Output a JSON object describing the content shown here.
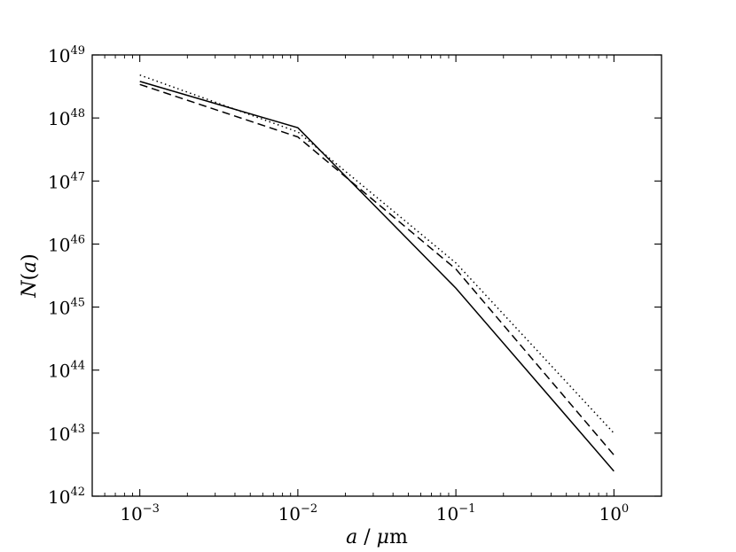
{
  "chart_data": {
    "type": "line",
    "title": "",
    "xlabel": {
      "var": "a",
      "sep": " / ",
      "mu": "μ",
      "unit": "m"
    },
    "ylabel": {
      "var": "N",
      "open": "(",
      "arg": "a",
      "close": ")"
    },
    "xscale": "log",
    "yscale": "log",
    "xlim": [
      0.0005,
      2
    ],
    "ylim": [
      1e+42,
      1e+49
    ],
    "grid": false,
    "x": [
      0.001,
      0.01,
      0.1,
      1
    ],
    "x_ticks": [
      {
        "value": 0.001,
        "base": "10",
        "exp": "−3"
      },
      {
        "value": 0.01,
        "base": "10",
        "exp": "−2"
      },
      {
        "value": 0.1,
        "base": "10",
        "exp": "−1"
      },
      {
        "value": 1,
        "base": "10",
        "exp": "0"
      }
    ],
    "y_ticks": [
      {
        "value": 1e+42,
        "base": "10",
        "exp": "42"
      },
      {
        "value": 1e+43,
        "base": "10",
        "exp": "43"
      },
      {
        "value": 1e+44,
        "base": "10",
        "exp": "44"
      },
      {
        "value": 1e+45,
        "base": "10",
        "exp": "45"
      },
      {
        "value": 1e+46,
        "base": "10",
        "exp": "46"
      },
      {
        "value": 1e+47,
        "base": "10",
        "exp": "47"
      },
      {
        "value": 1e+48,
        "base": "10",
        "exp": "48"
      },
      {
        "value": 1e+49,
        "base": "10",
        "exp": "49"
      }
    ],
    "series": [
      {
        "style": "solid",
        "values": [
          3.8e+48,
          7e+47,
          2e+45,
          2.5e+42
        ]
      },
      {
        "style": "dashed",
        "values": [
          3.4e+48,
          5e+47,
          4e+45,
          4.5e+42
        ]
      },
      {
        "style": "dotted",
        "values": [
          4.8e+48,
          6e+47,
          5e+45,
          1e+43
        ]
      }
    ]
  }
}
